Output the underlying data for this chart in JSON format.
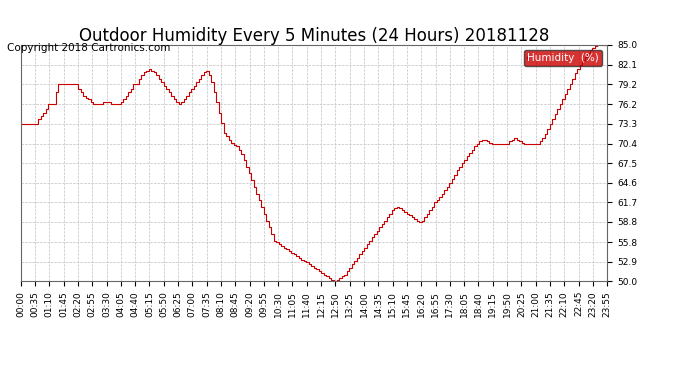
{
  "title": "Outdoor Humidity Every 5 Minutes (24 Hours) 20181128",
  "copyright": "Copyright 2018 Cartronics.com",
  "legend_label": "Humidity  (%)",
  "line_color": "#cc0000",
  "legend_bg": "#cc0000",
  "legend_text_color": "#ffffff",
  "background_color": "#ffffff",
  "grid_color": "#c0c0c0",
  "ylim": [
    50.0,
    85.0
  ],
  "yticks": [
    50.0,
    52.9,
    55.8,
    58.8,
    61.7,
    64.6,
    67.5,
    70.4,
    73.3,
    76.2,
    79.2,
    82.1,
    85.0
  ],
  "title_fontsize": 12,
  "copyright_fontsize": 7.5,
  "tick_fontsize": 6.5,
  "xtick_labels": [
    "00:00",
    "00:35",
    "01:10",
    "01:45",
    "02:20",
    "02:55",
    "03:30",
    "04:05",
    "04:40",
    "05:15",
    "05:50",
    "06:25",
    "07:00",
    "07:35",
    "08:10",
    "08:45",
    "09:20",
    "09:55",
    "10:30",
    "11:05",
    "11:40",
    "12:15",
    "12:50",
    "13:25",
    "14:00",
    "14:35",
    "15:10",
    "15:45",
    "16:20",
    "16:55",
    "17:30",
    "18:05",
    "18:40",
    "19:15",
    "19:50",
    "20:25",
    "21:00",
    "21:35",
    "22:10",
    "22:45",
    "23:20",
    "23:55"
  ],
  "humidity_data": [
    73.3,
    73.3,
    73.3,
    73.3,
    73.3,
    73.3,
    73.3,
    74.0,
    74.5,
    75.0,
    75.5,
    76.2,
    76.2,
    76.2,
    78.0,
    79.2,
    79.2,
    79.2,
    79.2,
    79.2,
    79.2,
    79.2,
    79.2,
    78.5,
    78.0,
    77.5,
    77.2,
    77.0,
    76.5,
    76.2,
    76.2,
    76.2,
    76.2,
    76.5,
    76.5,
    76.5,
    76.2,
    76.2,
    76.2,
    76.2,
    76.5,
    77.0,
    77.5,
    78.0,
    78.5,
    79.2,
    79.2,
    80.0,
    80.5,
    81.0,
    81.2,
    81.5,
    81.2,
    81.0,
    80.5,
    80.0,
    79.5,
    79.0,
    78.5,
    78.0,
    77.5,
    77.0,
    76.5,
    76.2,
    76.5,
    77.0,
    77.5,
    78.0,
    78.5,
    79.0,
    79.5,
    80.0,
    80.5,
    81.0,
    81.2,
    80.5,
    79.5,
    78.0,
    76.5,
    75.0,
    73.5,
    72.0,
    71.5,
    71.0,
    70.5,
    70.2,
    70.0,
    69.5,
    68.8,
    68.0,
    67.0,
    66.0,
    65.0,
    64.0,
    63.0,
    62.0,
    61.0,
    60.0,
    59.0,
    58.0,
    57.0,
    56.0,
    55.8,
    55.5,
    55.2,
    55.0,
    54.8,
    54.5,
    54.2,
    54.0,
    53.8,
    53.5,
    53.2,
    53.0,
    52.8,
    52.5,
    52.2,
    52.0,
    51.8,
    51.5,
    51.2,
    51.0,
    50.8,
    50.5,
    50.2,
    50.0,
    50.2,
    50.5,
    50.8,
    51.0,
    51.5,
    52.0,
    52.5,
    53.0,
    53.5,
    54.0,
    54.5,
    55.0,
    55.5,
    56.0,
    56.5,
    57.0,
    57.5,
    58.0,
    58.5,
    59.0,
    59.5,
    60.0,
    60.5,
    60.8,
    61.0,
    60.8,
    60.5,
    60.2,
    60.0,
    59.8,
    59.5,
    59.2,
    59.0,
    58.8,
    59.0,
    59.5,
    60.0,
    60.5,
    61.0,
    61.7,
    62.0,
    62.5,
    63.0,
    63.5,
    64.0,
    64.6,
    65.2,
    65.8,
    66.5,
    67.0,
    67.5,
    68.0,
    68.5,
    69.0,
    69.5,
    70.0,
    70.4,
    70.8,
    71.0,
    71.0,
    70.8,
    70.5,
    70.4,
    70.4,
    70.4,
    70.4,
    70.4,
    70.4,
    70.4,
    70.8,
    71.0,
    71.2,
    71.0,
    70.8,
    70.5,
    70.4,
    70.4,
    70.4,
    70.4,
    70.4,
    70.4,
    70.8,
    71.2,
    71.8,
    72.5,
    73.3,
    74.0,
    74.8,
    75.5,
    76.2,
    77.0,
    77.8,
    78.5,
    79.2,
    80.0,
    80.8,
    81.5,
    82.1,
    82.8,
    83.2,
    83.8,
    84.2,
    84.5,
    84.8,
    85.0,
    85.0,
    85.0,
    85.0,
    85.0
  ]
}
